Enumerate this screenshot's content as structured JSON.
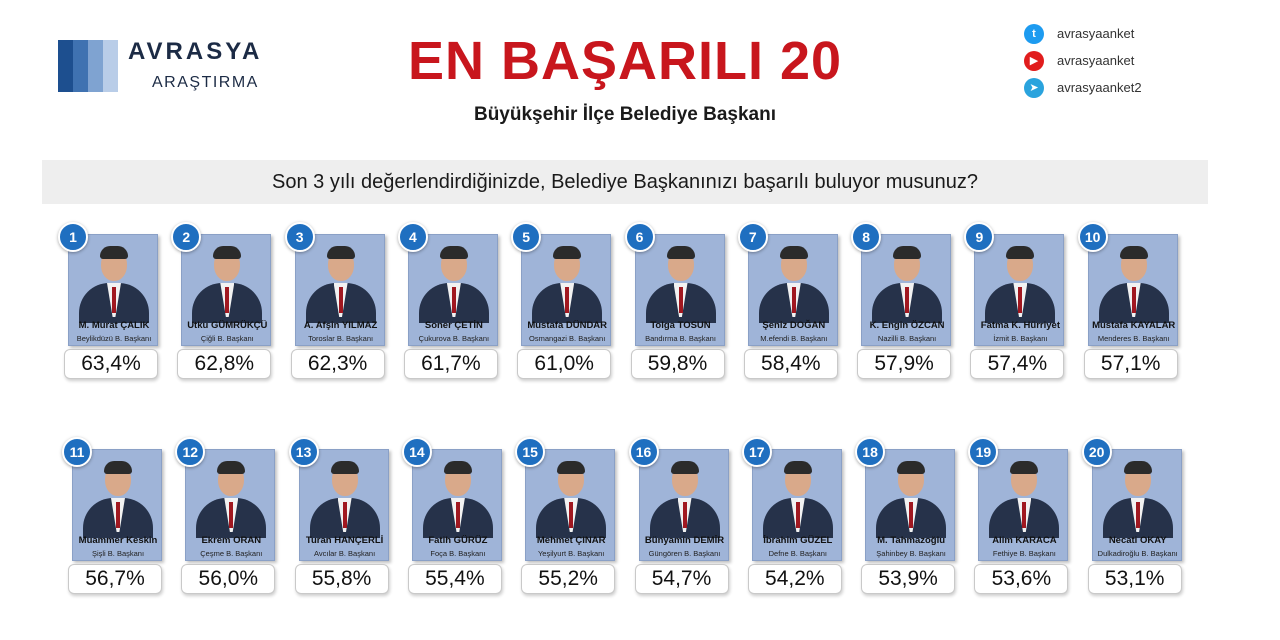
{
  "logo": {
    "name": "AVRASYA",
    "sub": "ARAŞTIRMA",
    "bar_colors": [
      "#1d4f8f",
      "#3f72b1",
      "#7fa3d1",
      "#b9cde8"
    ]
  },
  "header": {
    "title": "EN BAŞARILI 20",
    "subtitle": "Büyükşehir İlçe Belediye Başkanı"
  },
  "socials": [
    {
      "icon": "twitter-icon",
      "handle": "avrasyaanket",
      "color": "#1d9bf0"
    },
    {
      "icon": "youtube-icon",
      "handle": "avrasyaanket",
      "color": "#e11d1d"
    },
    {
      "icon": "telegram-icon",
      "handle": "avrasyaanket2",
      "color": "#2aa3dd"
    }
  ],
  "question": "Son 3 yılı değerlendirdiğinizde, Belediye Başkanınızı başarılı buluyor musunuz?",
  "mayors": [
    {
      "rank": "1",
      "name": "M. Murat ÇALIK",
      "role": "Beylikdüzü B. Başkanı",
      "percent": "63,4%"
    },
    {
      "rank": "2",
      "name": "Utku GÜMRÜKÇÜ",
      "role": "Çiğli B. Başkanı",
      "percent": "62,8%"
    },
    {
      "rank": "3",
      "name": "A. Afşin YILMAZ",
      "role": "Toroslar B. Başkanı",
      "percent": "62,3%"
    },
    {
      "rank": "4",
      "name": "Soner ÇETİN",
      "role": "Çukurova B. Başkanı",
      "percent": "61,7%"
    },
    {
      "rank": "5",
      "name": "Mustafa DÜNDAR",
      "role": "Osmangazi B. Başkanı",
      "percent": "61,0%"
    },
    {
      "rank": "6",
      "name": "Tolga TOSUN",
      "role": "Bandırma B. Başkanı",
      "percent": "59,8%"
    },
    {
      "rank": "7",
      "name": "Şeniz DOĞAN",
      "role": "M.efendi B. Başkanı",
      "percent": "58,4%"
    },
    {
      "rank": "8",
      "name": "K. Engin ÖZCAN",
      "role": "Nazilli B. Başkanı",
      "percent": "57,9%"
    },
    {
      "rank": "9",
      "name": "Fatma K. Hürriyet",
      "role": "İzmit B. Başkanı",
      "percent": "57,4%"
    },
    {
      "rank": "10",
      "name": "Mustafa KAYALAR",
      "role": "Menderes B. Başkanı",
      "percent": "57,1%"
    },
    {
      "rank": "11",
      "name": "Muammer Keskin",
      "role": "Şişli B. Başkanı",
      "percent": "56,7%"
    },
    {
      "rank": "12",
      "name": "Ekrem ORAN",
      "role": "Çeşme B. Başkanı",
      "percent": "56,0%"
    },
    {
      "rank": "13",
      "name": "Turan HANÇERLİ",
      "role": "Avcılar B. Başkanı",
      "percent": "55,8%"
    },
    {
      "rank": "14",
      "name": "Fatih GÜRÜZ",
      "role": "Foça B. Başkanı",
      "percent": "55,4%"
    },
    {
      "rank": "15",
      "name": "Mehmet ÇINAR",
      "role": "Yeşilyurt B. Başkanı",
      "percent": "55,2%"
    },
    {
      "rank": "16",
      "name": "Bünyamin DEMİR",
      "role": "Güngören B. Başkanı",
      "percent": "54,7%"
    },
    {
      "rank": "17",
      "name": "İbrahim GÜZEL",
      "role": "Defne B. Başkanı",
      "percent": "54,2%"
    },
    {
      "rank": "18",
      "name": "M. Tahmazoğlu",
      "role": "Şahinbey B. Başkanı",
      "percent": "53,9%"
    },
    {
      "rank": "19",
      "name": "Alim KARACA",
      "role": "Fethiye B. Başkanı",
      "percent": "53,6%"
    },
    {
      "rank": "20",
      "name": "Necati OKAY",
      "role": "Dulkadiroğlu B. Başkanı",
      "percent": "53,1%"
    }
  ]
}
